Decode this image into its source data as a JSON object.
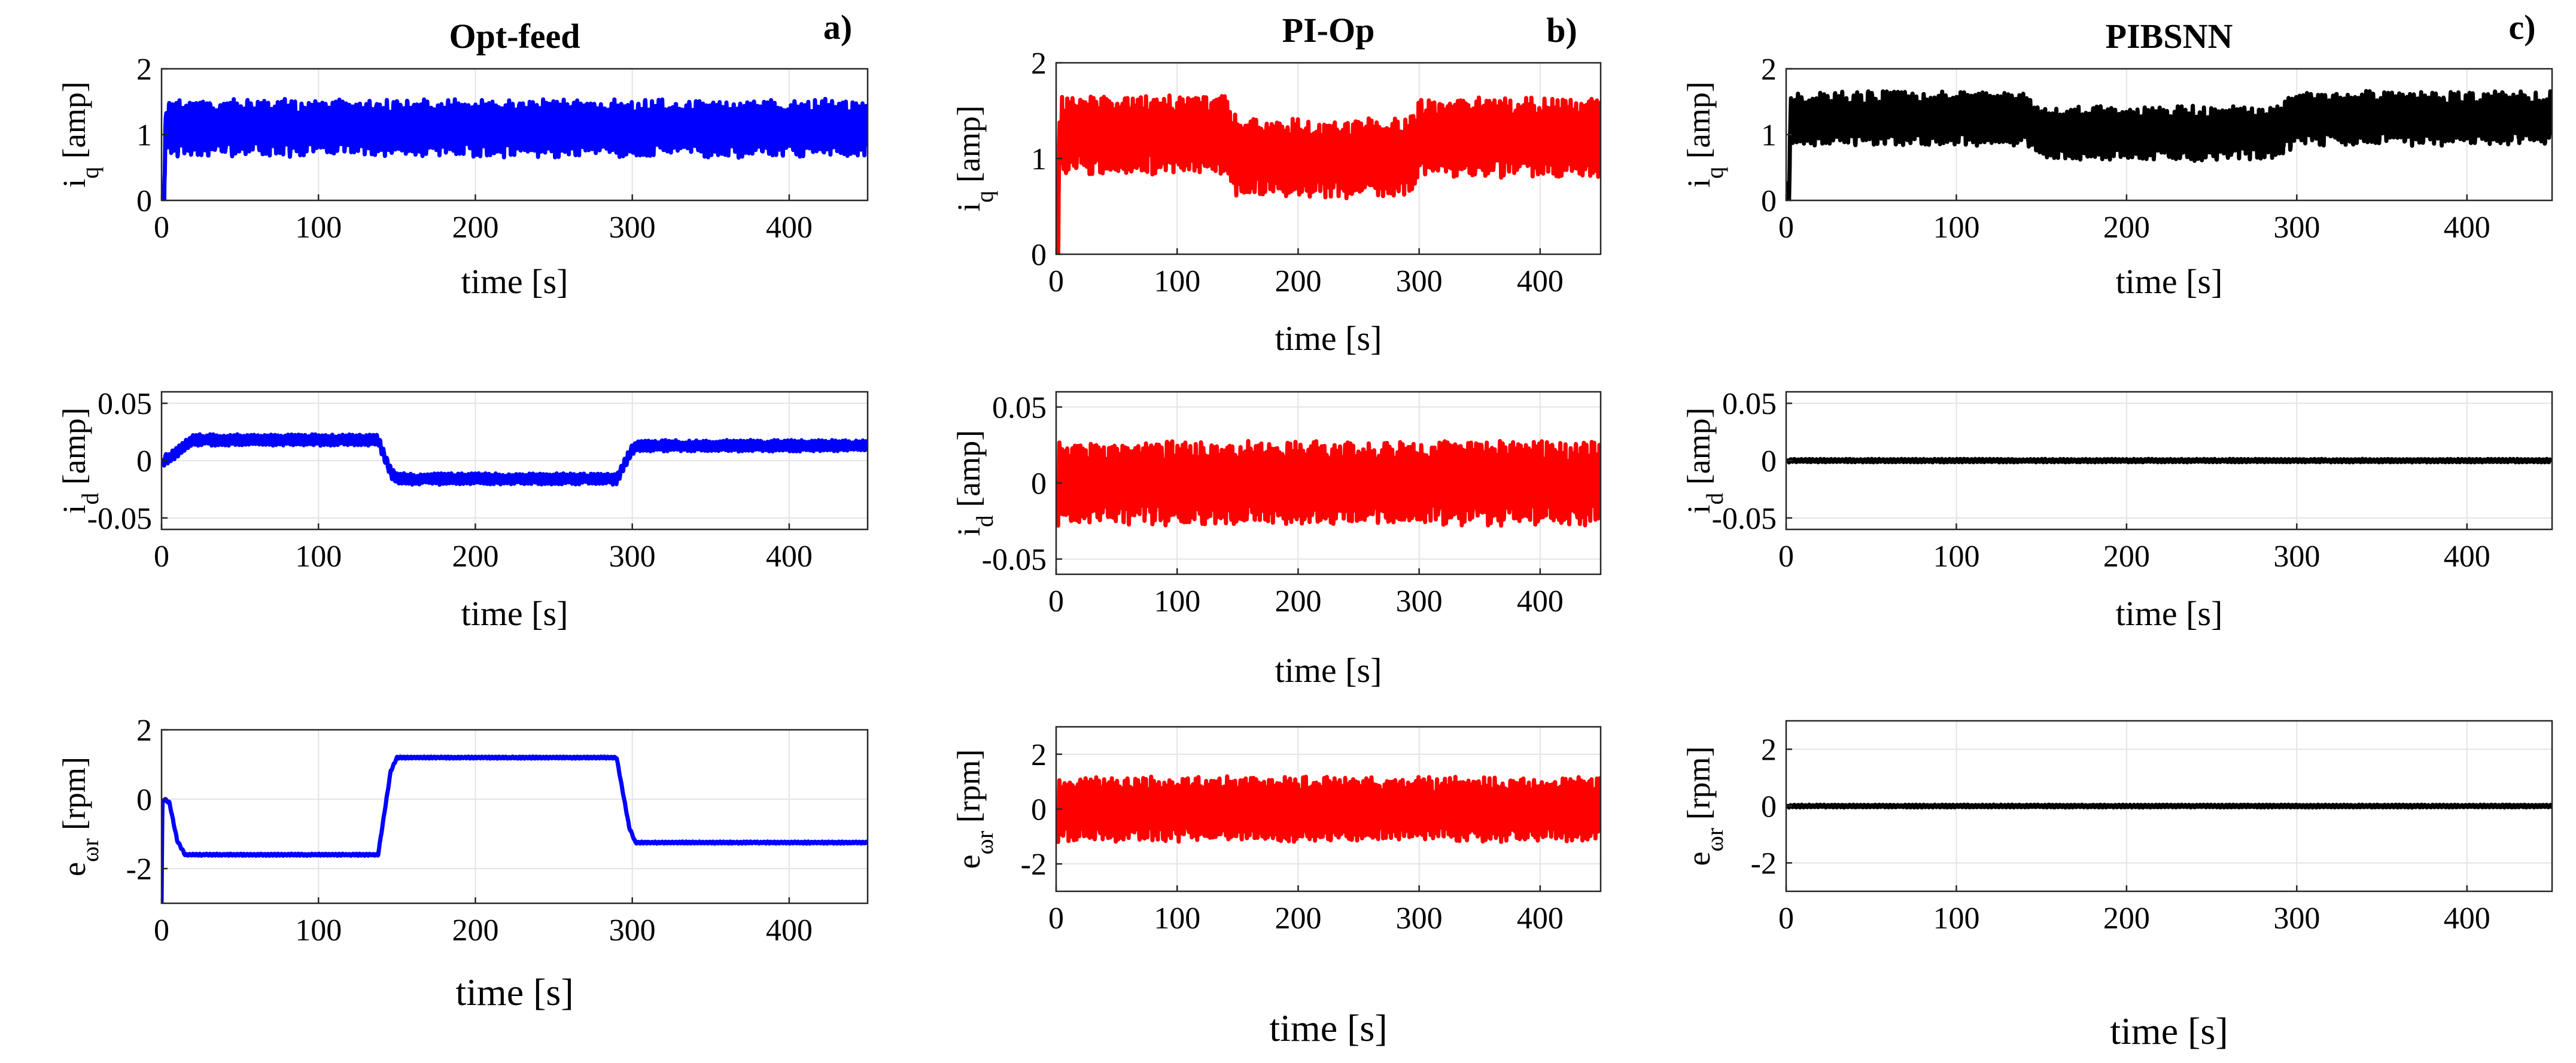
{
  "chart_data": [
    {
      "type": "line",
      "panel_label": "a)",
      "title": "Opt-feed",
      "ylabel_main": "i",
      "ylabel_sub": "q",
      "ylabel_unit": "[amp]",
      "xlabel": "time [s]",
      "xlim": [
        0,
        450
      ],
      "ylim": [
        0,
        2
      ],
      "xticks": [
        0,
        100,
        200,
        300,
        400
      ],
      "xtick_labels": [
        "0",
        "100",
        "200",
        "300",
        "400"
      ],
      "yticks": [
        0,
        1,
        2
      ],
      "ytick_labels": [
        "0",
        "1",
        "2"
      ],
      "grid": true,
      "color": "#0000ff",
      "series": [
        {
          "x": [
            0,
            1,
            3,
            450
          ],
          "y": [
            0,
            0,
            1.1,
            1.1
          ],
          "osc": 0.45
        }
      ]
    },
    {
      "type": "line",
      "panel_label": "",
      "title": "",
      "ylabel_main": "i",
      "ylabel_sub": "d",
      "ylabel_unit": "[amp]",
      "xlabel": "time [s]",
      "xlim": [
        0,
        450
      ],
      "ylim": [
        -0.06,
        0.06
      ],
      "xticks": [
        0,
        100,
        200,
        300,
        400
      ],
      "xtick_labels": [
        "0",
        "100",
        "200",
        "300",
        "400"
      ],
      "yticks": [
        -0.05,
        0,
        0.05
      ],
      "ytick_labels": [
        "-0.05",
        "0",
        "0.05"
      ],
      "grid": true,
      "color": "#0000ff",
      "series": [
        {
          "x": [
            0,
            5,
            12,
            20,
            138,
            146,
            150,
            290,
            298,
            302,
            450
          ],
          "y": [
            0,
            0.002,
            0.01,
            0.018,
            0.018,
            -0.01,
            -0.016,
            -0.016,
            0.005,
            0.013,
            0.013
          ],
          "osc": 0.005
        }
      ]
    },
    {
      "type": "line",
      "panel_label": "",
      "title": "",
      "ylabel_main": "e",
      "ylabel_sub": "ωr",
      "ylabel_unit": "[rpm]",
      "xlabel": "time [s]",
      "xlim": [
        0,
        450
      ],
      "ylim": [
        -3,
        2
      ],
      "xticks": [
        0,
        100,
        200,
        300,
        400
      ],
      "xtick_labels": [
        "0",
        "100",
        "200",
        "300",
        "400"
      ],
      "yticks": [
        -2,
        0,
        2
      ],
      "ytick_labels": [
        "-2",
        "0",
        "2"
      ],
      "grid": true,
      "color": "#0000ff",
      "series": [
        {
          "x": [
            0,
            0.5,
            2,
            5,
            10,
            15,
            138,
            146,
            150,
            290,
            298,
            302,
            450
          ],
          "y": [
            -3,
            -0.1,
            0,
            -0.1,
            -1.2,
            -1.6,
            -1.6,
            0.8,
            1.2,
            1.2,
            -0.8,
            -1.25,
            -1.25
          ],
          "osc": 0.03
        }
      ]
    },
    {
      "type": "line",
      "panel_label": "b)",
      "title": "PI-Op",
      "ylabel_main": "i",
      "ylabel_sub": "q",
      "ylabel_unit": "[amp]",
      "xlabel": "time [s]",
      "xlim": [
        0,
        450
      ],
      "ylim": [
        0,
        2
      ],
      "xticks": [
        0,
        100,
        200,
        300,
        400
      ],
      "xtick_labels": [
        "0",
        "100",
        "200",
        "300",
        "400"
      ],
      "yticks": [
        0,
        1,
        2
      ],
      "ytick_labels": [
        "0",
        "1",
        "2"
      ],
      "grid": true,
      "color": "#ff0000",
      "series": [
        {
          "x": [
            0,
            1,
            3,
            140,
            150,
            290,
            300,
            450
          ],
          "y": [
            0,
            0,
            1.25,
            1.25,
            1.0,
            1.0,
            1.22,
            1.22
          ],
          "osc": 0.42
        }
      ]
    },
    {
      "type": "line",
      "panel_label": "",
      "title": "",
      "ylabel_main": "i",
      "ylabel_sub": "d",
      "ylabel_unit": "[amp]",
      "xlabel": "time [s]",
      "xlim": [
        0,
        450
      ],
      "ylim": [
        -0.06,
        0.06
      ],
      "xticks": [
        0,
        100,
        200,
        300,
        400
      ],
      "xtick_labels": [
        "0",
        "100",
        "200",
        "300",
        "400"
      ],
      "yticks": [
        -0.05,
        0,
        0.05
      ],
      "ytick_labels": [
        "-0.05",
        "0",
        "0.05"
      ],
      "grid": true,
      "color": "#ff0000",
      "series": [
        {
          "x": [
            0,
            450
          ],
          "y": [
            0,
            0
          ],
          "osc": 0.028
        }
      ]
    },
    {
      "type": "line",
      "panel_label": "",
      "title": "",
      "ylabel_main": "e",
      "ylabel_sub": "ωr",
      "ylabel_unit": "[rpm]",
      "xlabel": "time [s]",
      "xlim": [
        0,
        450
      ],
      "ylim": [
        -3,
        3
      ],
      "xticks": [
        0,
        100,
        200,
        300,
        400
      ],
      "xtick_labels": [
        "0",
        "100",
        "200",
        "300",
        "400"
      ],
      "yticks": [
        -2,
        0,
        2
      ],
      "ytick_labels": [
        "-2",
        "0",
        "2"
      ],
      "grid": true,
      "color": "#ff0000",
      "series": [
        {
          "x": [
            0,
            450
          ],
          "y": [
            0,
            0
          ],
          "osc": 1.2
        }
      ]
    },
    {
      "type": "line",
      "panel_label": "c)",
      "title": "PIBSNN",
      "ylabel_main": "i",
      "ylabel_sub": "q",
      "ylabel_unit": "[amp]",
      "xlabel": "time [s]",
      "xlim": [
        0,
        450
      ],
      "ylim": [
        0,
        2
      ],
      "xticks": [
        0,
        100,
        200,
        300,
        400
      ],
      "xtick_labels": [
        "0",
        "100",
        "200",
        "300",
        "400"
      ],
      "yticks": [
        0,
        1,
        2
      ],
      "ytick_labels": [
        "0",
        "1",
        "2"
      ],
      "grid": true,
      "color": "#000000",
      "series": [
        {
          "x": [
            0,
            1,
            3,
            140,
            150,
            290,
            300,
            450
          ],
          "y": [
            0,
            0,
            1.25,
            1.25,
            1.02,
            1.02,
            1.25,
            1.25
          ],
          "osc": 0.42
        }
      ]
    },
    {
      "type": "line",
      "panel_label": "",
      "title": "",
      "ylabel_main": "i",
      "ylabel_sub": "d",
      "ylabel_unit": "[amp]",
      "xlabel": "time [s]",
      "xlim": [
        0,
        450
      ],
      "ylim": [
        -0.06,
        0.06
      ],
      "xticks": [
        0,
        100,
        200,
        300,
        400
      ],
      "xtick_labels": [
        "0",
        "100",
        "200",
        "300",
        "400"
      ],
      "yticks": [
        -0.05,
        0,
        0.05
      ],
      "ytick_labels": [
        "-0.05",
        "0",
        "0.05"
      ],
      "grid": true,
      "color": "#000000",
      "series": [
        {
          "x": [
            0,
            450
          ],
          "y": [
            0,
            0
          ],
          "osc": 0.0015
        }
      ]
    },
    {
      "type": "line",
      "panel_label": "",
      "title": "",
      "ylabel_main": "e",
      "ylabel_sub": "ωr",
      "ylabel_unit": "[rpm]",
      "xlabel": "time [s]",
      "xlim": [
        0,
        450
      ],
      "ylim": [
        -3,
        3
      ],
      "xticks": [
        0,
        100,
        200,
        300,
        400
      ],
      "xtick_labels": [
        "0",
        "100",
        "200",
        "300",
        "400"
      ],
      "yticks": [
        -2,
        0,
        2
      ],
      "ytick_labels": [
        "-2",
        "0",
        "2"
      ],
      "grid": true,
      "color": "#000000",
      "series": [
        {
          "x": [
            0,
            450
          ],
          "y": [
            0,
            0
          ],
          "osc": 0.05
        }
      ]
    }
  ]
}
